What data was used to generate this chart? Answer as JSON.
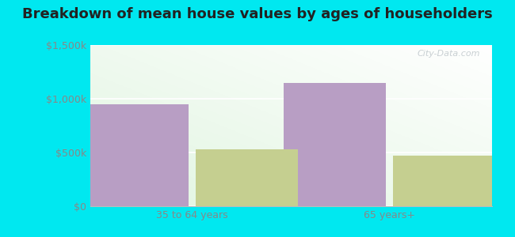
{
  "title": "Breakdown of mean house values by ages of householders",
  "categories": [
    "35 to 64 years",
    "65 years+"
  ],
  "barnegat_values": [
    950000,
    1150000
  ],
  "nj_values": [
    530000,
    470000
  ],
  "barnegat_color": "#b89ec4",
  "nj_color": "#c5cf90",
  "ylim": [
    0,
    1500000
  ],
  "yticks": [
    0,
    500000,
    1000000,
    1500000
  ],
  "ytick_labels": [
    "$0",
    "$500k",
    "$1,000k",
    "$1,500k"
  ],
  "background_outer": "#00e8f0",
  "watermark": "City-Data.com",
  "title_fontsize": 13,
  "tick_fontsize": 9,
  "legend_fontsize": 10,
  "bar_width": 0.28,
  "group_positions": [
    0.28,
    0.82
  ]
}
